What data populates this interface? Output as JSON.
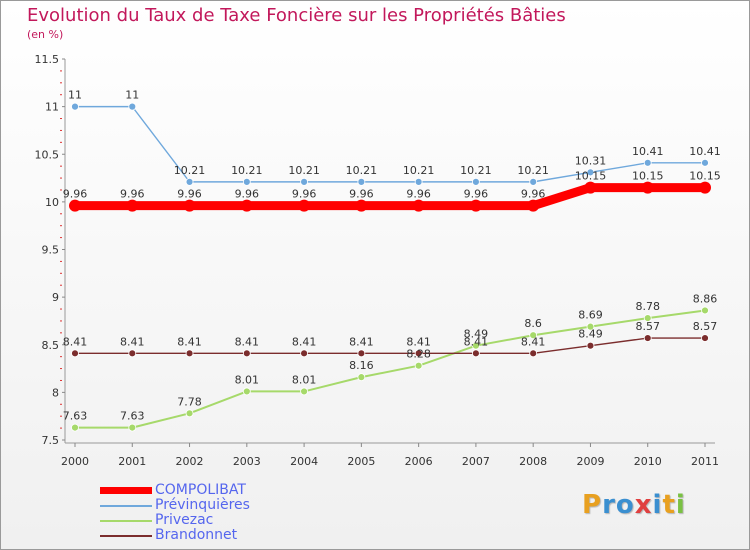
{
  "header": {
    "title": "Evolution du Taux de Taxe Foncière sur les Propriétés Bâties",
    "unit": "(en %)"
  },
  "chart_data": {
    "type": "line",
    "x": [
      "2000",
      "2001",
      "2002",
      "2003",
      "2004",
      "2005",
      "2006",
      "2007",
      "2008",
      "2009",
      "2010",
      "2011"
    ],
    "ylim": [
      7.5,
      11.5
    ],
    "yticks": [
      "7.5",
      "8",
      "8.5",
      "9",
      "9.5",
      "10",
      "10.5",
      "11",
      "11.5"
    ],
    "grid": false,
    "series": [
      {
        "name": "COMPOLIBAT",
        "color": "#ff0000",
        "values": [
          9.96,
          9.96,
          9.96,
          9.96,
          9.96,
          9.96,
          9.96,
          9.96,
          9.96,
          10.15,
          10.15,
          10.15
        ],
        "labels": [
          "9.96",
          "9.96",
          "9.96",
          "9.96",
          "9.96",
          "9.96",
          "9.96",
          "9.96",
          "9.96",
          "10.15",
          "10.15",
          "10.15"
        ]
      },
      {
        "name": "Prévinquières",
        "color": "#6fa8dc",
        "values": [
          11,
          11,
          10.21,
          10.21,
          10.21,
          10.21,
          10.21,
          10.21,
          10.21,
          10.31,
          10.41,
          10.41
        ],
        "labels": [
          "11",
          "11",
          "10.21",
          "10.21",
          "10.21",
          "10.21",
          "10.21",
          "10.21",
          "10.21",
          "10.31",
          "10.41",
          "10.41"
        ]
      },
      {
        "name": "Privezac",
        "color": "#a6d96a",
        "values": [
          7.63,
          7.63,
          7.78,
          8.01,
          8.01,
          8.16,
          8.28,
          8.49,
          8.6,
          8.69,
          8.78,
          8.86
        ],
        "labels": [
          "7.63",
          "7.63",
          "7.78",
          "8.01",
          "8.01",
          "8.16",
          "8.28",
          "8.49",
          "8.6",
          "8.69",
          "8.78",
          "8.86"
        ]
      },
      {
        "name": "Brandonnet",
        "color": "#7b2d2d",
        "values": [
          8.41,
          8.41,
          8.41,
          8.41,
          8.41,
          8.41,
          8.41,
          8.41,
          8.41,
          8.49,
          8.57,
          8.57
        ],
        "labels": [
          "8.41",
          "8.41",
          "8.41",
          "8.41",
          "8.41",
          "8.41",
          "8.41",
          "8.41",
          "8.41",
          "8.49",
          "8.57",
          "8.57"
        ]
      }
    ]
  },
  "legend": [
    {
      "label": "COMPOLIBAT",
      "color": "#ff0000"
    },
    {
      "label": "Prévinquières",
      "color": "#6fa8dc"
    },
    {
      "label": "Privezac",
      "color": "#a6d96a"
    },
    {
      "label": "Brandonnet",
      "color": "#7b2d2d"
    }
  ],
  "logo": {
    "letters": [
      "P",
      "r",
      "o",
      "x",
      "i",
      "t",
      "i"
    ],
    "colors": [
      "#e8a020",
      "#3a8fd0",
      "#3a8fd0",
      "#e04040",
      "#3a8fd0",
      "#e8a020",
      "#7ac143"
    ]
  }
}
